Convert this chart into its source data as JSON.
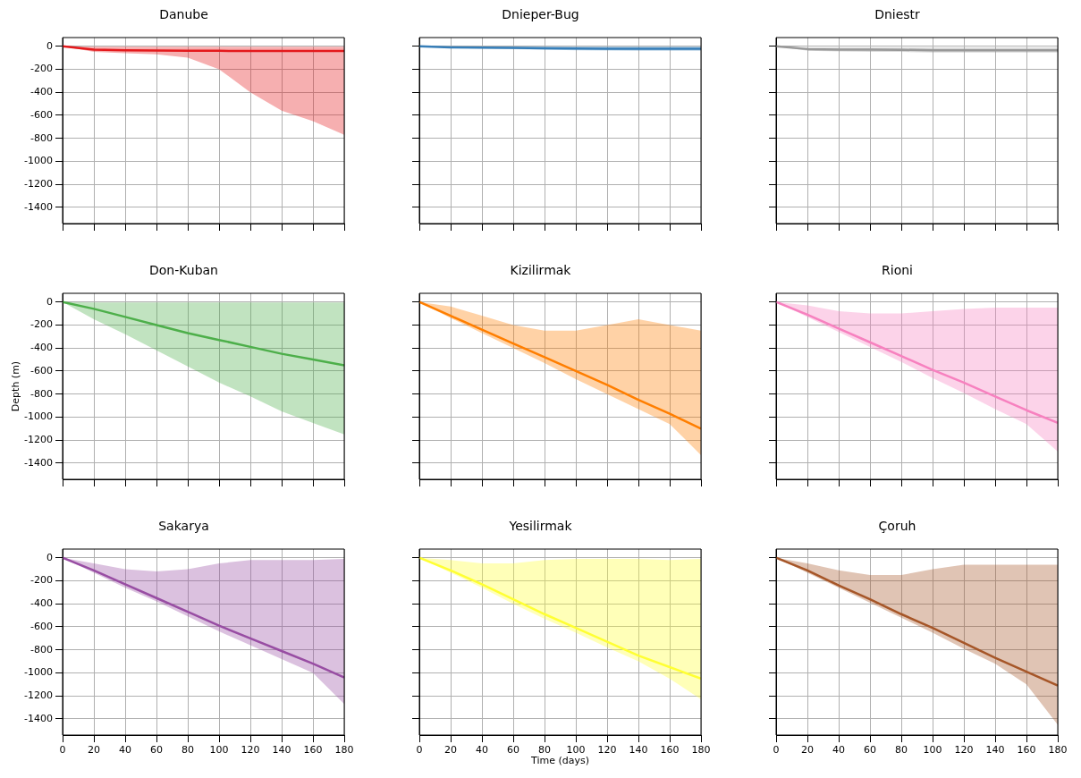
{
  "chart_data": [
    {
      "type": "line",
      "title": "Danube",
      "x": [
        0,
        20,
        40,
        60,
        80,
        100,
        120,
        140,
        160,
        180
      ],
      "xlim": [
        0,
        180
      ],
      "xticks": [
        0,
        20,
        40,
        60,
        80,
        100,
        120,
        140,
        160,
        180
      ],
      "ylim": [
        -1540,
        75
      ],
      "yticks": [
        0,
        -200,
        -400,
        -600,
        -800,
        -1000,
        -1200,
        -1400
      ],
      "grid": true,
      "marker": "none",
      "tick_labels": "y",
      "series": [
        {
          "color": "#e41a1c",
          "values": [
            0,
            -30,
            -35,
            -38,
            -40,
            -40,
            -42,
            -42,
            -42,
            -42
          ],
          "lower": [
            0,
            -50,
            -60,
            -70,
            -100,
            -200,
            -400,
            -560,
            -650,
            -770
          ],
          "upper": [
            0,
            -5,
            -5,
            -5,
            -5,
            -5,
            -5,
            -5,
            -5,
            -5
          ]
        }
      ]
    },
    {
      "type": "line",
      "title": "Dnieper-Bug",
      "x": [
        0,
        20,
        40,
        60,
        80,
        100,
        120,
        140,
        160,
        180
      ],
      "xlim": [
        0,
        180
      ],
      "xticks": [
        0,
        20,
        40,
        60,
        80,
        100,
        120,
        140,
        160,
        180
      ],
      "ylim": [
        -1540,
        75
      ],
      "yticks": [
        0,
        -200,
        -400,
        -600,
        -800,
        -1000,
        -1200,
        -1400
      ],
      "grid": true,
      "marker": "none",
      "tick_labels": false,
      "series": [
        {
          "color": "#377eb8",
          "values": [
            0,
            -10,
            -12,
            -15,
            -18,
            -20,
            -22,
            -22,
            -22,
            -22
          ],
          "lower": [
            0,
            -15,
            -20,
            -25,
            -30,
            -35,
            -38,
            -40,
            -40,
            -40
          ],
          "upper": [
            0,
            -3,
            -3,
            -3,
            -3,
            -3,
            -3,
            -3,
            -3,
            -3
          ]
        }
      ]
    },
    {
      "type": "line",
      "title": "Dniestr",
      "x": [
        0,
        20,
        40,
        60,
        80,
        100,
        120,
        140,
        160,
        180
      ],
      "xlim": [
        0,
        180
      ],
      "xticks": [
        0,
        20,
        40,
        60,
        80,
        100,
        120,
        140,
        160,
        180
      ],
      "ylim": [
        -1540,
        75
      ],
      "yticks": [
        0,
        -200,
        -400,
        -600,
        -800,
        -1000,
        -1200,
        -1400
      ],
      "grid": true,
      "marker": "none",
      "tick_labels": false,
      "series": [
        {
          "color": "#999999",
          "values": [
            0,
            -25,
            -30,
            -30,
            -32,
            -35,
            -35,
            -35,
            -35,
            -35
          ],
          "lower": [
            0,
            -40,
            -45,
            -50,
            -50,
            -55,
            -55,
            -55,
            -55,
            -55
          ],
          "upper": [
            0,
            -10,
            -10,
            -10,
            -10,
            -10,
            -10,
            -10,
            -10,
            -10
          ]
        }
      ]
    },
    {
      "type": "line",
      "title": "Don-Kuban",
      "ylabel": "Depth (m)",
      "x": [
        0,
        20,
        40,
        60,
        80,
        100,
        120,
        140,
        160,
        180
      ],
      "xlim": [
        0,
        180
      ],
      "xticks": [
        0,
        20,
        40,
        60,
        80,
        100,
        120,
        140,
        160,
        180
      ],
      "ylim": [
        -1540,
        75
      ],
      "yticks": [
        0,
        -200,
        -400,
        -600,
        -800,
        -1000,
        -1200,
        -1400
      ],
      "grid": true,
      "marker": "none",
      "tick_labels": "y",
      "series": [
        {
          "color": "#4daf4a",
          "values": [
            0,
            -60,
            -130,
            -200,
            -270,
            -330,
            -390,
            -450,
            -500,
            -550
          ],
          "lower": [
            0,
            -150,
            -280,
            -420,
            -560,
            -700,
            -820,
            -950,
            -1050,
            -1150
          ],
          "upper": [
            0,
            -5,
            -5,
            -5,
            -5,
            -5,
            -5,
            -5,
            -5,
            -5
          ]
        }
      ]
    },
    {
      "type": "line",
      "title": "Kizilirmak",
      "x": [
        0,
        20,
        40,
        60,
        80,
        100,
        120,
        140,
        160,
        180
      ],
      "xlim": [
        0,
        180
      ],
      "xticks": [
        0,
        20,
        40,
        60,
        80,
        100,
        120,
        140,
        160,
        180
      ],
      "ylim": [
        -1540,
        75
      ],
      "yticks": [
        0,
        -200,
        -400,
        -600,
        -800,
        -1000,
        -1200,
        -1400
      ],
      "grid": true,
      "marker": "none",
      "tick_labels": false,
      "series": [
        {
          "color": "#ff7f00",
          "values": [
            0,
            -120,
            -240,
            -360,
            -480,
            -600,
            -720,
            -850,
            -970,
            -1100
          ],
          "lower": [
            0,
            -140,
            -270,
            -400,
            -530,
            -670,
            -800,
            -930,
            -1060,
            -1330
          ],
          "upper": [
            0,
            -40,
            -120,
            -200,
            -250,
            -250,
            -200,
            -150,
            -200,
            -250
          ]
        }
      ]
    },
    {
      "type": "line",
      "title": "Rioni",
      "x": [
        0,
        20,
        40,
        60,
        80,
        100,
        120,
        140,
        160,
        180
      ],
      "xlim": [
        0,
        180
      ],
      "xticks": [
        0,
        20,
        40,
        60,
        80,
        100,
        120,
        140,
        160,
        180
      ],
      "ylim": [
        -1540,
        75
      ],
      "yticks": [
        0,
        -200,
        -400,
        -600,
        -800,
        -1000,
        -1200,
        -1400
      ],
      "grid": true,
      "marker": "none",
      "tick_labels": false,
      "series": [
        {
          "color": "#f781bf",
          "values": [
            0,
            -110,
            -230,
            -350,
            -470,
            -590,
            -700,
            -820,
            -940,
            -1050
          ],
          "lower": [
            0,
            -130,
            -260,
            -390,
            -520,
            -660,
            -790,
            -930,
            -1060,
            -1300
          ],
          "upper": [
            0,
            -30,
            -80,
            -100,
            -100,
            -80,
            -60,
            -50,
            -50,
            -50
          ]
        }
      ]
    },
    {
      "type": "line",
      "title": "Sakarya",
      "x": [
        0,
        20,
        40,
        60,
        80,
        100,
        120,
        140,
        160,
        180
      ],
      "xlim": [
        0,
        180
      ],
      "xticks": [
        0,
        20,
        40,
        60,
        80,
        100,
        120,
        140,
        160,
        180
      ],
      "ylim": [
        -1540,
        75
      ],
      "yticks": [
        0,
        -200,
        -400,
        -600,
        -800,
        -1000,
        -1200,
        -1400
      ],
      "grid": true,
      "marker": "none",
      "series": [
        {
          "color": "#984ea3",
          "values": [
            0,
            -110,
            -230,
            -350,
            -470,
            -590,
            -700,
            -810,
            -920,
            -1040
          ],
          "lower": [
            0,
            -130,
            -260,
            -380,
            -510,
            -640,
            -760,
            -880,
            -1000,
            -1270
          ],
          "upper": [
            0,
            -50,
            -100,
            -120,
            -100,
            -50,
            -20,
            -20,
            -20,
            -10
          ]
        }
      ]
    },
    {
      "type": "line",
      "title": "Yesilirmak",
      "xlabel": "Time (days)",
      "x": [
        0,
        20,
        40,
        60,
        80,
        100,
        120,
        140,
        160,
        180
      ],
      "xlim": [
        0,
        180
      ],
      "xticks": [
        0,
        20,
        40,
        60,
        80,
        100,
        120,
        140,
        160,
        180
      ],
      "ylim": [
        -1540,
        75
      ],
      "yticks": [
        0,
        -200,
        -400,
        -600,
        -800,
        -1000,
        -1200,
        -1400
      ],
      "grid": true,
      "marker": "none",
      "tick_labels": "x",
      "series": [
        {
          "color": "#ffff33",
          "values": [
            0,
            -110,
            -230,
            -360,
            -490,
            -610,
            -730,
            -850,
            -950,
            -1050
          ],
          "lower": [
            0,
            -130,
            -260,
            -400,
            -530,
            -650,
            -780,
            -900,
            -1050,
            -1230
          ],
          "upper": [
            0,
            -20,
            -50,
            -50,
            -20,
            -10,
            -10,
            -10,
            -20,
            -10
          ]
        }
      ]
    },
    {
      "type": "line",
      "title": "Çoruh",
      "x": [
        0,
        20,
        40,
        60,
        80,
        100,
        120,
        140,
        160,
        180
      ],
      "xlim": [
        0,
        180
      ],
      "xticks": [
        0,
        20,
        40,
        60,
        80,
        100,
        120,
        140,
        160,
        180
      ],
      "ylim": [
        -1540,
        75
      ],
      "yticks": [
        0,
        -200,
        -400,
        -600,
        -800,
        -1000,
        -1200,
        -1400
      ],
      "grid": true,
      "marker": "none",
      "tick_labels": "x",
      "series": [
        {
          "color": "#a65628",
          "values": [
            0,
            -110,
            -240,
            -360,
            -490,
            -610,
            -740,
            -870,
            -990,
            -1110
          ],
          "lower": [
            0,
            -130,
            -260,
            -390,
            -520,
            -650,
            -790,
            -920,
            -1100,
            -1450
          ],
          "upper": [
            0,
            -50,
            -110,
            -150,
            -150,
            -100,
            -60,
            -60,
            -60,
            -60
          ]
        }
      ]
    }
  ]
}
